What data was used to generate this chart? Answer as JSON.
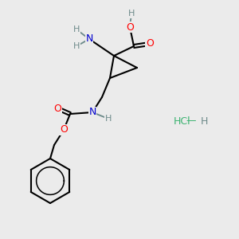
{
  "bg_color": "#ebebeb",
  "bond_color": "#000000",
  "bond_width": 1.5,
  "atom_colors": {
    "O": "#ff0000",
    "N": "#0000cd",
    "C": "#000000",
    "H": "#6e8b8b",
    "Cl": "#3cb371"
  },
  "font_size": 9,
  "figsize": [
    3.0,
    3.0
  ],
  "dpi": 100
}
